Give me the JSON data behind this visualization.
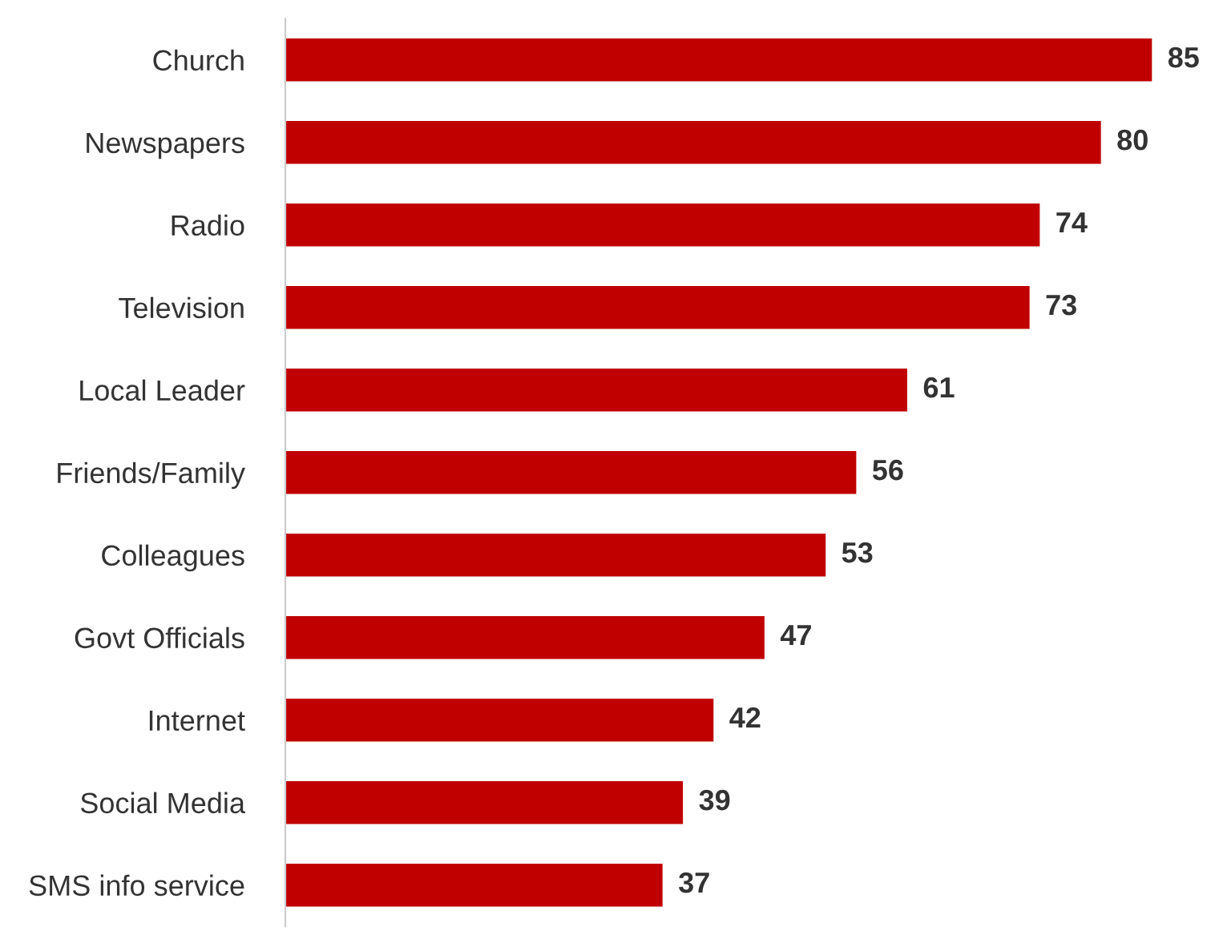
{
  "chart_data": {
    "type": "bar",
    "orientation": "horizontal",
    "categories": [
      "Church",
      "Newspapers",
      "Radio",
      "Television",
      "Local Leader",
      "Friends/Family",
      "Colleagues",
      "Govt Officials",
      "Internet",
      "Social Media",
      "SMS info service"
    ],
    "values": [
      85,
      80,
      74,
      73,
      61,
      56,
      53,
      47,
      42,
      39,
      37
    ],
    "color": "#c00000",
    "data_labels": true,
    "grid": false,
    "legend": false
  }
}
